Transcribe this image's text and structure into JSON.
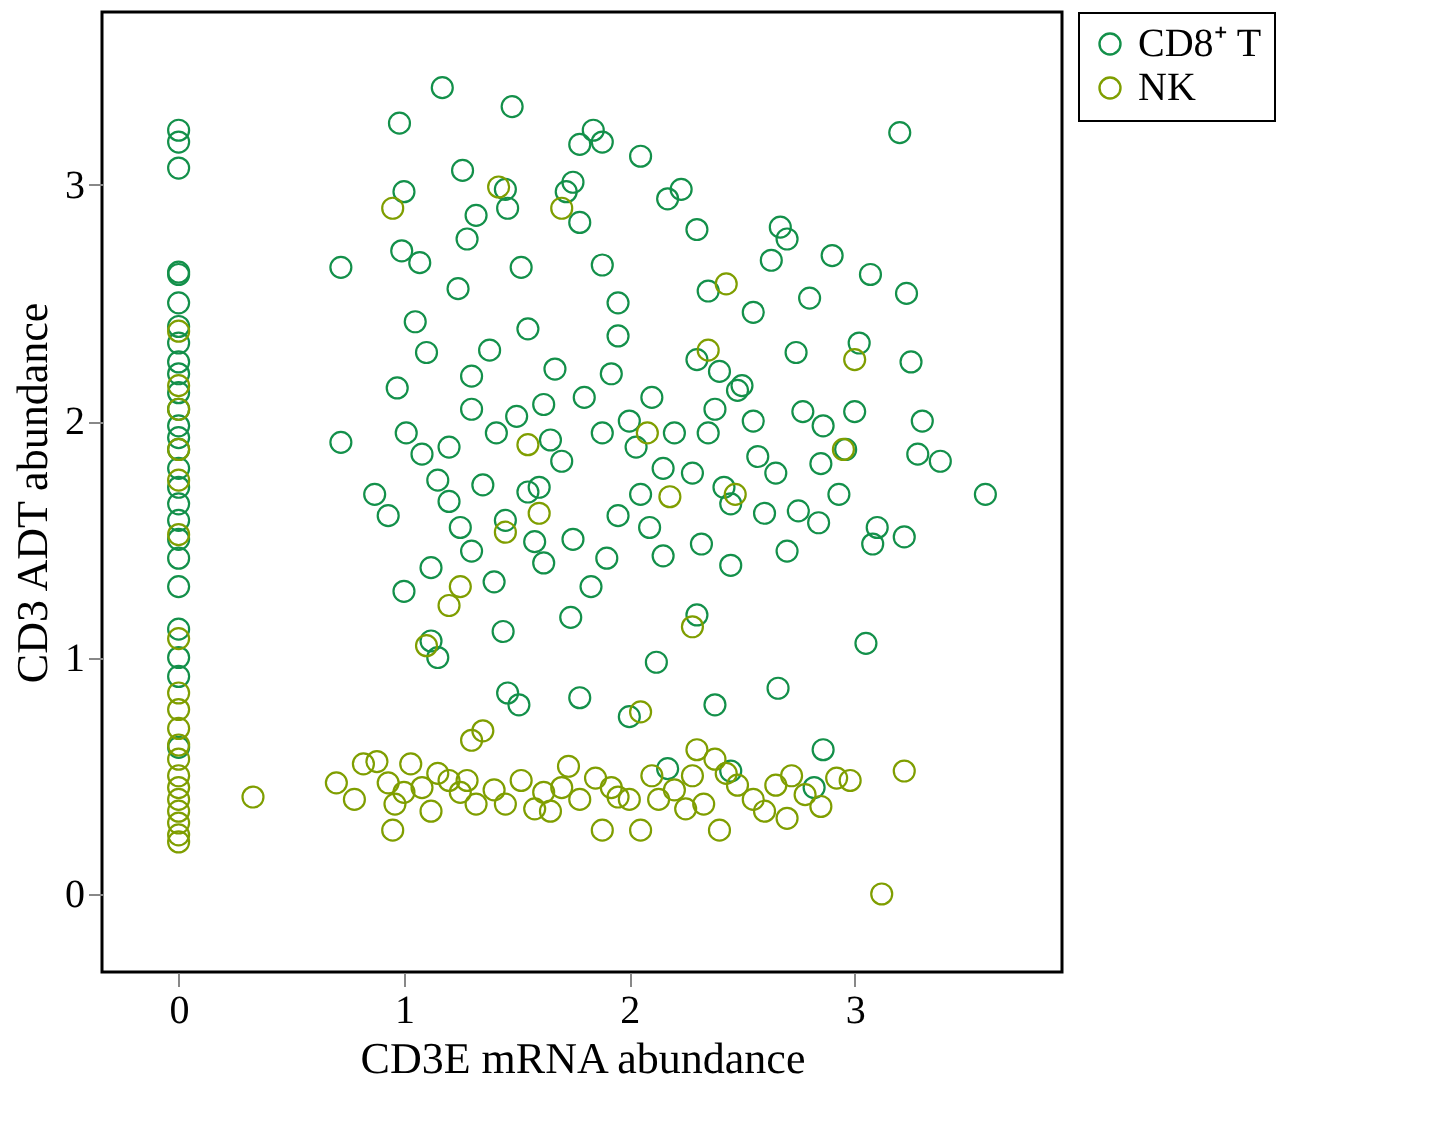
{
  "chart_data": {
    "type": "scatter",
    "xlabel": "CD3E mRNA abundance",
    "ylabel": "CD3 ADT abundance",
    "xlim": [
      -0.34,
      3.92
    ],
    "ylim": [
      -0.33,
      3.73
    ],
    "xticks": [
      0,
      1,
      2,
      3
    ],
    "yticks": [
      0,
      1,
      2,
      3
    ],
    "grid": false,
    "legend": "top right",
    "marker": "circle",
    "series": [
      {
        "name": "CD8⁺ T",
        "color": "#13904a",
        "x": [
          0,
          0,
          0,
          0,
          0,
          0,
          0,
          0,
          0,
          0,
          0,
          0,
          0,
          0,
          0,
          0,
          0,
          0,
          0,
          0,
          0,
          0,
          0,
          0,
          0,
          0,
          0.72,
          0.72,
          0.87,
          0.93,
          0.98,
          1.0,
          0.99,
          1.07,
          1.05,
          1.1,
          1.08,
          1.01,
          0.97,
          1.0,
          1.12,
          1.12,
          1.15,
          1.17,
          1.26,
          1.32,
          1.24,
          1.28,
          1.38,
          1.3,
          1.41,
          1.46,
          1.45,
          1.48,
          1.52,
          1.55,
          1.44,
          1.46,
          1.51,
          1.58,
          1.6,
          1.62,
          1.67,
          1.72,
          1.75,
          1.78,
          1.78,
          1.84,
          1.88,
          1.88,
          1.78,
          1.74,
          1.83,
          1.9,
          1.95,
          1.95,
          2.0,
          2.03,
          2.05,
          2.09,
          2.05,
          2.15,
          2.12,
          2.17,
          2.23,
          2.3,
          2.3,
          2.32,
          2.3,
          2.35,
          2.4,
          2.42,
          2.45,
          2.48,
          2.5,
          2.55,
          2.57,
          2.6,
          2.63,
          2.67,
          2.7,
          2.74,
          2.77,
          2.8,
          2.84,
          2.86,
          2.9,
          2.93,
          2.96,
          3.0,
          3.02,
          3.05,
          3.08,
          3.07,
          3.1,
          3.2,
          3.23,
          3.25,
          3.3,
          3.28,
          3.38,
          3.58,
          3.22,
          2.66,
          2.86,
          2.38,
          2.0,
          1.88,
          1.7,
          1.55,
          1.45,
          1.35,
          1.25,
          1.2,
          1.15,
          1.2,
          1.3,
          1.5,
          1.65,
          1.8,
          1.92,
          2.1,
          2.2,
          2.28,
          2.35,
          2.45,
          2.55,
          2.65,
          2.75,
          2.85,
          2.38,
          2.15,
          1.95,
          1.75,
          1.62,
          1.4,
          1.3,
          2.7,
          2.82,
          2.17,
          2.45
        ],
        "values": [
          3.23,
          3.18,
          3.07,
          2.63,
          2.62,
          2.5,
          2.4,
          2.33,
          2.25,
          2.2,
          2.12,
          2.05,
          1.98,
          1.93,
          1.88,
          1.8,
          1.72,
          1.65,
          1.58,
          1.5,
          1.42,
          1.3,
          1.12,
          1.0,
          0.92,
          0.62,
          2.65,
          1.91,
          1.69,
          1.6,
          3.26,
          2.97,
          2.72,
          2.67,
          2.42,
          2.29,
          1.86,
          1.95,
          2.14,
          1.28,
          1.07,
          1.38,
          1.0,
          3.41,
          3.06,
          2.87,
          2.56,
          2.77,
          2.3,
          2.19,
          1.95,
          2.9,
          2.98,
          3.33,
          2.65,
          2.39,
          1.11,
          0.85,
          0.8,
          1.49,
          1.72,
          2.07,
          2.22,
          2.97,
          3.01,
          2.84,
          3.17,
          3.23,
          3.18,
          2.66,
          0.83,
          1.17,
          1.3,
          1.42,
          2.5,
          2.36,
          2.0,
          1.89,
          1.69,
          1.55,
          3.12,
          1.43,
          0.98,
          2.94,
          2.98,
          2.81,
          1.18,
          1.48,
          2.26,
          2.55,
          2.21,
          1.72,
          1.39,
          2.13,
          2.15,
          2.46,
          1.85,
          1.61,
          2.68,
          2.82,
          2.77,
          2.29,
          2.04,
          2.52,
          1.57,
          1.98,
          2.7,
          1.69,
          1.88,
          2.04,
          2.33,
          1.06,
          1.48,
          2.62,
          1.55,
          3.22,
          2.54,
          2.25,
          2.0,
          1.86,
          1.83,
          1.69,
          1.51,
          0.87,
          0.61,
          0.8,
          0.75,
          1.95,
          1.83,
          1.7,
          1.58,
          1.73,
          1.55,
          1.66,
          1.75,
          1.89,
          2.05,
          2.02,
          1.92,
          2.1,
          2.2,
          2.1,
          1.95,
          1.78,
          1.95,
          1.65,
          2.0,
          1.78,
          1.62,
          1.82,
          2.05,
          1.8,
          1.6,
          1.5,
          1.4,
          1.32,
          1.45,
          1.45,
          0.45,
          0.53,
          0.52
        ]
      },
      {
        "name": "NK",
        "color": "#7f9e00",
        "x": [
          0,
          0,
          0,
          0,
          0,
          0,
          0,
          0,
          0,
          0,
          0,
          0,
          0,
          0,
          0,
          0,
          0,
          0,
          0,
          0.33,
          0.7,
          0.78,
          0.82,
          0.88,
          0.93,
          0.96,
          1.0,
          1.03,
          1.08,
          1.12,
          1.15,
          1.2,
          1.25,
          1.3,
          1.35,
          1.32,
          1.4,
          1.45,
          1.52,
          1.58,
          1.62,
          1.7,
          1.73,
          1.78,
          1.85,
          1.88,
          1.92,
          2.0,
          2.05,
          2.1,
          2.13,
          2.2,
          2.28,
          2.3,
          2.33,
          2.4,
          2.43,
          2.48,
          2.55,
          2.6,
          2.7,
          2.72,
          2.78,
          2.85,
          2.92,
          2.98,
          3.12,
          3.22,
          1.28,
          1.65,
          2.25,
          2.65,
          0.95,
          1.95,
          2.38,
          0.95,
          1.42,
          1.55,
          1.45,
          1.1,
          2.05,
          2.28,
          2.35,
          2.43,
          3.0,
          2.95,
          2.47,
          2.18,
          1.7,
          2.08,
          1.25,
          1.2,
          1.6
        ],
        "values": [
          2.38,
          2.15,
          2.05,
          1.88,
          1.75,
          1.52,
          1.08,
          0.85,
          0.78,
          0.7,
          0.63,
          0.57,
          0.5,
          0.45,
          0.4,
          0.35,
          0.3,
          0.25,
          0.22,
          0.41,
          0.47,
          0.4,
          0.55,
          0.56,
          0.47,
          0.38,
          0.43,
          0.55,
          0.45,
          0.35,
          0.51,
          0.48,
          0.43,
          0.65,
          0.69,
          0.38,
          0.44,
          0.38,
          0.48,
          0.36,
          0.43,
          0.45,
          0.54,
          0.4,
          0.49,
          0.27,
          0.45,
          0.4,
          0.27,
          0.5,
          0.4,
          0.44,
          0.5,
          0.61,
          0.38,
          0.27,
          0.51,
          0.46,
          0.4,
          0.35,
          0.32,
          0.5,
          0.42,
          0.37,
          0.49,
          0.48,
          0.0,
          0.52,
          0.48,
          0.35,
          0.36,
          0.46,
          0.27,
          0.41,
          0.57,
          2.9,
          2.99,
          1.9,
          1.53,
          1.05,
          0.77,
          1.13,
          2.3,
          2.58,
          2.26,
          1.88,
          1.69,
          1.68,
          2.9,
          1.95,
          1.3,
          1.22,
          1.61
        ]
      }
    ]
  }
}
